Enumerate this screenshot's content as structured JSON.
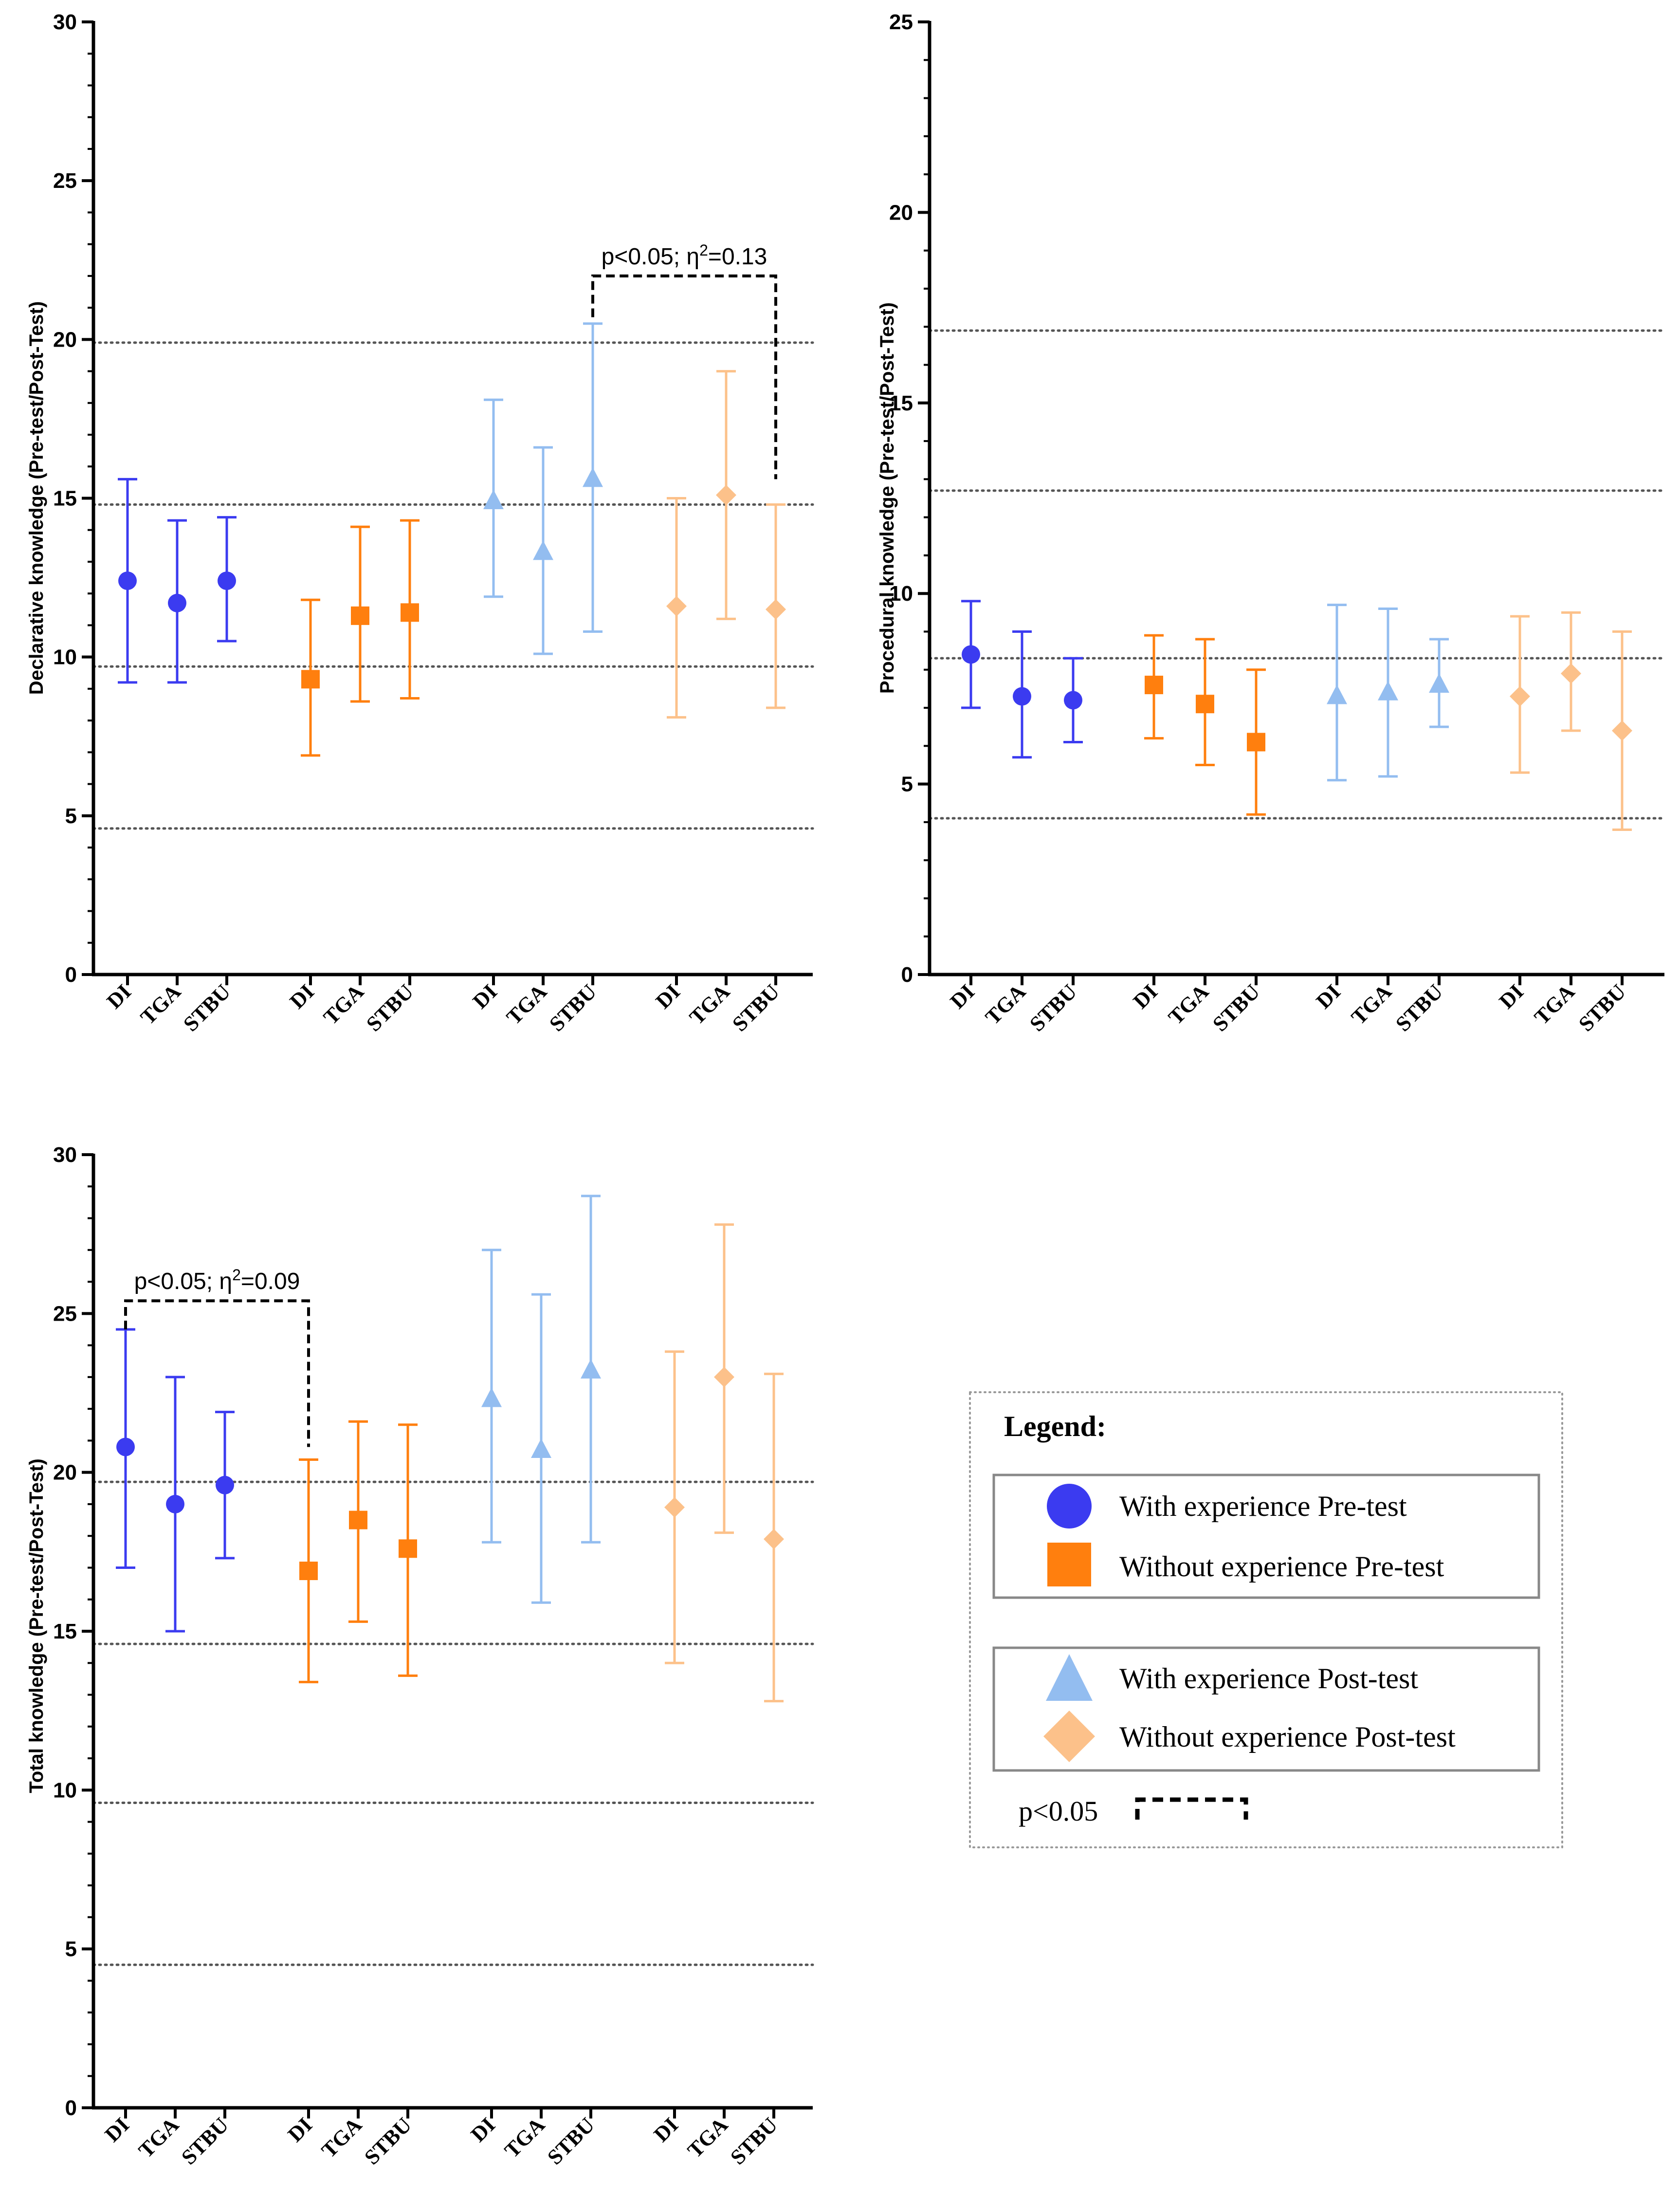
{
  "chart_data": [
    {
      "id": "declarative",
      "type": "scatter",
      "ylabel": "Declarative knowledge (Pre-test/Post-Test)",
      "ylim": [
        0,
        30
      ],
      "yticks": [
        0,
        5,
        10,
        15,
        20,
        25,
        30
      ],
      "reference_lines": [
        4.6,
        9.7,
        14.8,
        19.9
      ],
      "categories": [
        "DI",
        "TGA",
        "STBU"
      ],
      "series": [
        {
          "name": "With experience Pre-test",
          "mean": [
            12.4,
            11.7,
            12.4
          ],
          "low": [
            9.2,
            9.2,
            10.5
          ],
          "high": [
            15.6,
            14.3,
            14.4
          ]
        },
        {
          "name": "Without experience Pre-test",
          "mean": [
            9.3,
            11.3,
            11.4
          ],
          "low": [
            6.9,
            8.6,
            8.7
          ],
          "high": [
            11.8,
            14.1,
            14.3
          ]
        },
        {
          "name": "With experience Post-test",
          "mean": [
            14.9,
            13.3,
            15.6
          ],
          "low": [
            11.9,
            10.1,
            10.8
          ],
          "high": [
            18.1,
            16.6,
            20.5
          ]
        },
        {
          "name": "Without experience Post-test",
          "mean": [
            11.6,
            15.1,
            11.5
          ],
          "low": [
            8.1,
            11.2,
            8.4
          ],
          "high": [
            15.0,
            19.0,
            14.8
          ]
        }
      ],
      "significance": {
        "label": "p<0.05; η",
        "sup": "2",
        "value": "=0.13",
        "from": [
          2,
          2
        ],
        "to": [
          3,
          2
        ],
        "level": 22.0,
        "from_end": 20.7,
        "to_end": 15.6
      }
    },
    {
      "id": "procedural",
      "type": "scatter",
      "ylabel": "Procedural knowledge (Pre-test/Post-Test)",
      "ylim": [
        0,
        25
      ],
      "yticks": [
        0,
        5,
        10,
        15,
        20,
        25
      ],
      "reference_lines": [
        4.1,
        8.3,
        12.7,
        16.9
      ],
      "categories": [
        "DI",
        "TGA",
        "STBU"
      ],
      "series": [
        {
          "name": "With experience Pre-test",
          "mean": [
            8.4,
            7.3,
            7.2
          ],
          "low": [
            7.0,
            5.7,
            6.1
          ],
          "high": [
            9.8,
            9.0,
            8.3
          ]
        },
        {
          "name": "Without experience Pre-test",
          "mean": [
            7.6,
            7.1,
            6.1
          ],
          "low": [
            6.2,
            5.5,
            4.2
          ],
          "high": [
            8.9,
            8.8,
            8.0
          ]
        },
        {
          "name": "With experience Post-test",
          "mean": [
            7.3,
            7.4,
            7.6
          ],
          "low": [
            5.1,
            5.2,
            6.5
          ],
          "high": [
            9.7,
            9.6,
            8.8
          ]
        },
        {
          "name": "Without experience Post-test",
          "mean": [
            7.3,
            7.9,
            6.4
          ],
          "low": [
            5.3,
            6.4,
            3.8
          ],
          "high": [
            9.4,
            9.5,
            9.0
          ]
        }
      ]
    },
    {
      "id": "total",
      "type": "scatter",
      "ylabel": "Total knowledge (Pre-test/Post-Test)",
      "ylim": [
        0,
        30
      ],
      "yticks": [
        0,
        5,
        10,
        15,
        20,
        25,
        30
      ],
      "reference_lines": [
        4.5,
        9.6,
        14.6,
        19.7
      ],
      "categories": [
        "DI",
        "TGA",
        "STBU"
      ],
      "series": [
        {
          "name": "With experience Pre-test",
          "mean": [
            20.8,
            19.0,
            19.6
          ],
          "low": [
            17.0,
            15.0,
            17.3
          ],
          "high": [
            24.5,
            23.0,
            21.9
          ]
        },
        {
          "name": "Without experience Pre-test",
          "mean": [
            16.9,
            18.5,
            17.6
          ],
          "low": [
            13.4,
            15.3,
            13.6
          ],
          "high": [
            20.4,
            21.6,
            21.5
          ]
        },
        {
          "name": "With experience Post-test",
          "mean": [
            22.3,
            20.7,
            23.2
          ],
          "low": [
            17.8,
            15.9,
            17.8
          ],
          "high": [
            27.0,
            25.6,
            28.7
          ]
        },
        {
          "name": "Without experience Post-test",
          "mean": [
            18.9,
            23.0,
            17.9
          ],
          "low": [
            14.0,
            18.1,
            12.8
          ],
          "high": [
            23.8,
            27.8,
            23.1
          ]
        }
      ],
      "significance": {
        "label": "p<0.05; η",
        "sup": "2",
        "value": "=0.09",
        "from": [
          0,
          0
        ],
        "to": [
          1,
          0
        ],
        "level": 25.4,
        "from_end": 24.5,
        "to_end": 20.8
      }
    }
  ],
  "legend": {
    "title": "Legend:",
    "items": [
      {
        "label": "With experience Pre-test"
      },
      {
        "label": "Without experience Pre-test"
      },
      {
        "label": "With experience Post-test"
      },
      {
        "label": "Without experience Post-test"
      }
    ],
    "sig_label": "p<0.05"
  },
  "colors": {
    "with_pre": "#3b3bf0",
    "without_pre": "#ff7f0e",
    "with_post": "#93bdf0",
    "without_post": "#fcc18a",
    "axis": "#000000",
    "refline": "#555555"
  },
  "markers": [
    "circle",
    "square",
    "triangle",
    "diamond"
  ]
}
